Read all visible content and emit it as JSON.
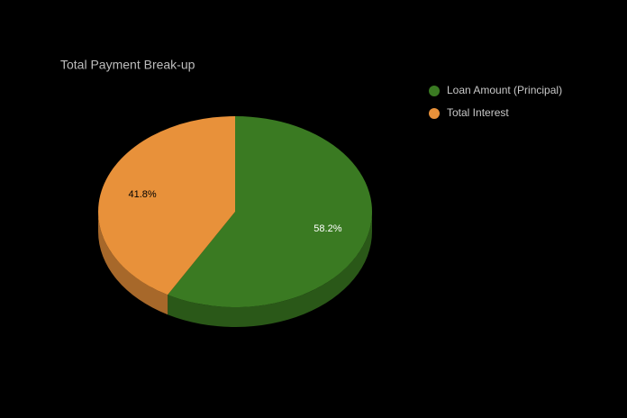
{
  "chart_data": {
    "type": "pie3d",
    "title": "Total Payment Break-up",
    "categories": [
      "Loan Amount (Principal)",
      "Total Interest"
    ],
    "values": [
      58.2,
      41.8
    ],
    "value_labels": [
      "58.2%",
      "41.8%"
    ],
    "colors": [
      "#3a7a22",
      "#e8913a"
    ],
    "legend": "top-right"
  }
}
